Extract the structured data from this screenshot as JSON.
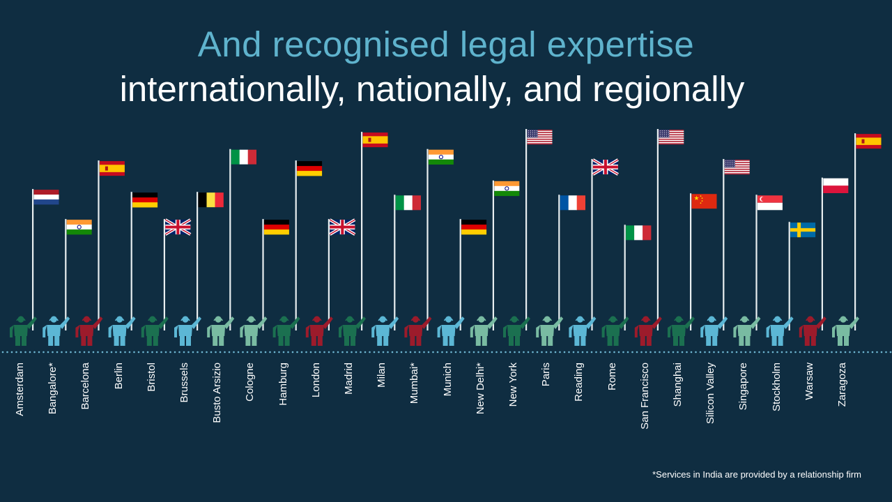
{
  "title": {
    "line1": "And recognised legal expertise",
    "line2": "internationally, nationally, and regionally"
  },
  "footnote": "*Services in India are provided by a relationship firm",
  "colors": {
    "background": "#0f2d41",
    "teal": "#5fb3cd",
    "dark_green": "#1b7050",
    "light_blue": "#5cb7d5",
    "red": "#9c1b2b",
    "sage": "#79bba2",
    "pole": "#e8eef0",
    "dots": "#6fb7d3"
  },
  "offices": [
    {
      "city": "Amsterdam",
      "figure": "dark_green",
      "flag": "netherlands",
      "flag_level": 0.58
    },
    {
      "city": "Bangalore*",
      "figure": "light_blue",
      "flag": "india",
      "flag_level": 0.37
    },
    {
      "city": "Barcelona",
      "figure": "red",
      "flag": "spain",
      "flag_level": 0.78
    },
    {
      "city": "Berlin",
      "figure": "light_blue",
      "flag": "germany",
      "flag_level": 0.56
    },
    {
      "city": "Bristol",
      "figure": "dark_green",
      "flag": "uk",
      "flag_level": 0.37
    },
    {
      "city": "Brussels",
      "figure": "light_blue",
      "flag": "belgium",
      "flag_level": 0.56
    },
    {
      "city": "Busto Arsizio",
      "figure": "sage",
      "flag": "italy",
      "flag_level": 0.86
    },
    {
      "city": "Cologne",
      "figure": "sage",
      "flag": "germany",
      "flag_level": 0.37
    },
    {
      "city": "Hamburg",
      "figure": "dark_green",
      "flag": "germany",
      "flag_level": 0.78
    },
    {
      "city": "London",
      "figure": "red",
      "flag": "uk",
      "flag_level": 0.37
    },
    {
      "city": "Madrid",
      "figure": "dark_green",
      "flag": "spain",
      "flag_level": 0.98
    },
    {
      "city": "Milan",
      "figure": "light_blue",
      "flag": "italy",
      "flag_level": 0.54
    },
    {
      "city": "Mumbai*",
      "figure": "red",
      "flag": "india",
      "flag_level": 0.86
    },
    {
      "city": "Munich",
      "figure": "light_blue",
      "flag": "germany",
      "flag_level": 0.37
    },
    {
      "city": "New Delhi*",
      "figure": "sage",
      "flag": "india",
      "flag_level": 0.64
    },
    {
      "city": "New York",
      "figure": "dark_green",
      "flag": "usa",
      "flag_level": 1.0
    },
    {
      "city": "Paris",
      "figure": "sage",
      "flag": "france",
      "flag_level": 0.54
    },
    {
      "city": "Reading",
      "figure": "light_blue",
      "flag": "uk",
      "flag_level": 0.79
    },
    {
      "city": "Rome",
      "figure": "dark_green",
      "flag": "italy",
      "flag_level": 0.33
    },
    {
      "city": "San Francisco",
      "figure": "red",
      "flag": "usa",
      "flag_level": 1.0
    },
    {
      "city": "Shanghai",
      "figure": "dark_green",
      "flag": "china",
      "flag_level": 0.55
    },
    {
      "city": "Silicon Valley",
      "figure": "light_blue",
      "flag": "usa",
      "flag_level": 0.79
    },
    {
      "city": "Singapore",
      "figure": "sage",
      "flag": "singapore",
      "flag_level": 0.54
    },
    {
      "city": "Stockholm",
      "figure": "light_blue",
      "flag": "sweden",
      "flag_level": 0.35
    },
    {
      "city": "Warsaw",
      "figure": "red",
      "flag": "poland",
      "flag_level": 0.66
    },
    {
      "city": "Zaragoza",
      "figure": "sage",
      "flag": "spain",
      "flag_level": 0.97
    }
  ]
}
